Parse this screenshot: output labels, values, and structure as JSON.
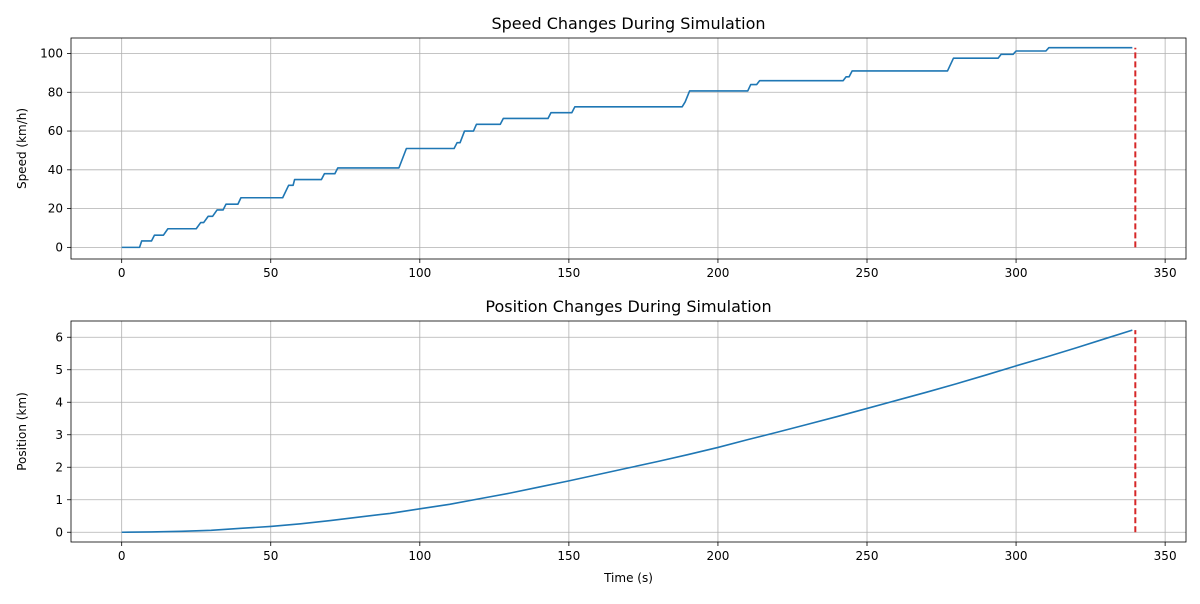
{
  "chart_data": [
    {
      "type": "line",
      "title": "Speed Changes During Simulation",
      "xlabel": "",
      "ylabel": "Speed (km/h)",
      "xlim": [
        -17,
        357
      ],
      "ylim": [
        -6,
        108
      ],
      "xticks": [
        0,
        50,
        100,
        150,
        200,
        250,
        300,
        350
      ],
      "yticks": [
        0,
        20,
        40,
        60,
        80,
        100
      ],
      "grid": true,
      "colors": {
        "line": "#1f77b4",
        "marker": "#d62728"
      },
      "series": [
        {
          "x": [
            0,
            6,
            6.7,
            10,
            11,
            14,
            15.5,
            25,
            26.5,
            27.5,
            29,
            30.5,
            32,
            34,
            35,
            39,
            40,
            54,
            56,
            57.5,
            58,
            67,
            68,
            71.5,
            72.5,
            93,
            95.5,
            111.5,
            112.5,
            113.5,
            115,
            118,
            119,
            127,
            128,
            143,
            144,
            151,
            152,
            188,
            189,
            190.5,
            210,
            211,
            213,
            214,
            242,
            243,
            244,
            245,
            277,
            279,
            294,
            295,
            299,
            300,
            310,
            311,
            339
          ],
          "y": [
            0,
            0,
            3.3,
            3.3,
            6.3,
            6.3,
            9.6,
            9.6,
            12.8,
            12.8,
            16,
            16,
            19.3,
            19.3,
            22.3,
            22.3,
            25.6,
            25.6,
            32,
            32,
            35,
            35,
            38,
            38,
            41,
            41,
            51,
            51,
            54,
            54,
            60,
            60,
            63.5,
            63.5,
            66.5,
            66.5,
            69.5,
            69.5,
            72.5,
            72.5,
            75,
            80.7,
            80.7,
            84,
            84,
            86,
            86,
            88,
            88,
            91,
            91,
            97.6,
            97.6,
            99.6,
            99.6,
            101.3,
            101.3,
            103,
            103
          ]
        }
      ],
      "marker_x": 340,
      "marker_y_range": [
        0,
        103
      ]
    },
    {
      "type": "line",
      "title": "Position Changes During Simulation",
      "xlabel": "Time (s)",
      "ylabel": "Position (km)",
      "xlim": [
        -17,
        357
      ],
      "ylim": [
        -0.3,
        6.5
      ],
      "xticks": [
        0,
        50,
        100,
        150,
        200,
        250,
        300,
        350
      ],
      "yticks": [
        0,
        1,
        2,
        3,
        4,
        5,
        6
      ],
      "grid": true,
      "colors": {
        "line": "#1f77b4",
        "marker": "#d62728"
      },
      "series": [
        {
          "x": [
            0,
            10,
            20,
            30,
            40,
            50,
            60,
            70,
            80,
            90,
            100,
            110,
            120,
            130,
            140,
            150,
            160,
            170,
            180,
            190,
            200,
            210,
            220,
            230,
            240,
            250,
            260,
            270,
            280,
            290,
            300,
            310,
            320,
            330,
            339
          ],
          "y": [
            0,
            0.01,
            0.03,
            0.06,
            0.12,
            0.18,
            0.26,
            0.36,
            0.47,
            0.58,
            0.72,
            0.86,
            1.03,
            1.2,
            1.39,
            1.58,
            1.78,
            1.98,
            2.18,
            2.39,
            2.61,
            2.85,
            3.08,
            3.32,
            3.56,
            3.81,
            4.06,
            4.31,
            4.57,
            4.84,
            5.12,
            5.39,
            5.67,
            5.96,
            6.22
          ]
        }
      ],
      "marker_x": 340,
      "marker_y_range": [
        0,
        6.22
      ]
    }
  ]
}
